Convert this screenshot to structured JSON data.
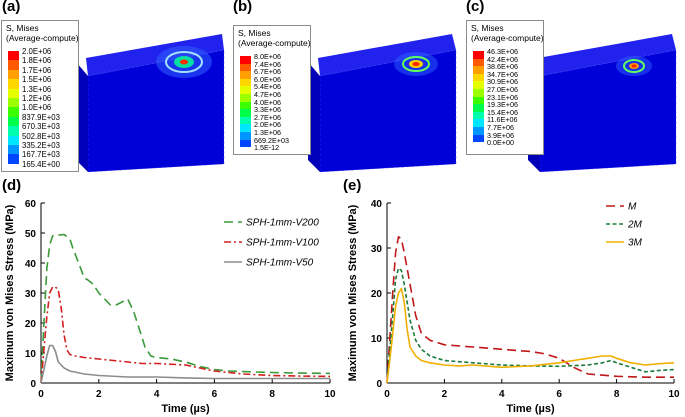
{
  "panels": {
    "a": {
      "label": "(a)",
      "legend_title_1": "S, Mises",
      "legend_title_2": "(Average-compute)",
      "levels": [
        "2.0E+06",
        "1.8E+06",
        "1.7E+06",
        "1.5E+06",
        "1.3E+06",
        "1.2E+06",
        "1.0E+06",
        "837.9E+03",
        "670.3E+03",
        "502.8E+03",
        "335.2E+03",
        "167.7E+03",
        "165.4E+00"
      ]
    },
    "b": {
      "label": "(b)",
      "legend_title_1": "S, Mises",
      "legend_title_2": "(Average-compute)",
      "levels": [
        "8.0E+06",
        "7.4E+06",
        "6.7E+06",
        "6.0E+06",
        "5.4E+06",
        "4.7E+06",
        "4.0E+06",
        "3.3E+06",
        "2.7E+06",
        "2.0E+06",
        "1.3E+06",
        "669.2E+03",
        "1.5E-12"
      ]
    },
    "c": {
      "label": "(c)",
      "legend_title_1": "S, Mises",
      "legend_title_2": "(Average-compute)",
      "levels": [
        "46.3E+06",
        "42.4E+06",
        "38.6E+06",
        "34.7E+06",
        "30.9E+06",
        "27.0E+06",
        "23.1E+06",
        "19.3E+06",
        "15.4E+06",
        "11.6E+06",
        "7.7E+06",
        "3.9E+06",
        "0.0E+00"
      ]
    },
    "d": {
      "label": "(d)"
    },
    "e": {
      "label": "(e)"
    }
  },
  "contour_colors": [
    "#ff0000",
    "#ff5a00",
    "#ffa000",
    "#ffd700",
    "#e6ff00",
    "#9bff00",
    "#3cff00",
    "#00ff4a",
    "#00ffad",
    "#00e6ff",
    "#0096ff",
    "#0046ff",
    "#0000f5"
  ],
  "block_color": "#1a1ae6",
  "chart_data": [
    {
      "type": "line",
      "xlabel": "Time (µs)",
      "ylabel": "Maximum von Mises Stress (MPa)",
      "xlim": [
        0,
        10
      ],
      "ylim": [
        0,
        60
      ],
      "xticks": [
        "0",
        "2",
        "4",
        "6",
        "8",
        "10"
      ],
      "yticks": [
        "0",
        "10",
        "20",
        "30",
        "40",
        "50",
        "60"
      ],
      "grid": false,
      "legend_position": "top-right",
      "series": [
        {
          "name": "SPH-1mm-V200",
          "color": "#3a9a3a",
          "style": "long-dash",
          "x": [
            0,
            0.1,
            0.2,
            0.3,
            0.4,
            0.5,
            0.6,
            0.8,
            1.0,
            1.1,
            1.3,
            1.5,
            1.6,
            1.8,
            2.0,
            2.2,
            2.4,
            2.6,
            2.8,
            3.0,
            3.2,
            3.4,
            3.6,
            3.8,
            4.0,
            4.5,
            5.0,
            5.5,
            6.0,
            6.5,
            7.0,
            8.0,
            9.0,
            10.0
          ],
          "y": [
            0,
            20,
            38,
            46,
            49,
            49.5,
            49.3,
            49.5,
            48,
            45,
            40,
            35,
            34.5,
            33,
            30,
            28,
            26,
            26,
            27,
            28,
            24,
            18,
            12,
            9,
            8.5,
            8,
            7,
            5.5,
            4.5,
            4,
            3.8,
            3.5,
            3.3,
            3.2
          ]
        },
        {
          "name": "SPH-1mm-V100",
          "color": "#d22020",
          "style": "dash-dot",
          "x": [
            0,
            0.2,
            0.3,
            0.4,
            0.5,
            0.6,
            0.7,
            0.8,
            0.9,
            1.0,
            1.2,
            1.5,
            2.0,
            2.5,
            3.0,
            3.5,
            4.0,
            5.0,
            6.0,
            7.0,
            8.0,
            9.0,
            10.0
          ],
          "y": [
            0,
            22,
            30,
            32,
            32,
            31,
            25,
            16,
            11,
            9.5,
            9,
            8.5,
            8,
            7.5,
            7,
            6.5,
            6.5,
            6,
            4,
            3,
            2.5,
            2.3,
            2.2
          ]
        },
        {
          "name": "SPH-1mm-V50",
          "color": "#8c8c8c",
          "style": "solid",
          "x": [
            0,
            0.2,
            0.3,
            0.4,
            0.5,
            0.6,
            0.8,
            1.0,
            1.5,
            2.0,
            3.0,
            4.0,
            5.0,
            6.0,
            8.0,
            10.0
          ],
          "y": [
            0,
            9,
            12.5,
            12.5,
            10.5,
            7,
            5,
            4,
            3,
            2.5,
            2,
            2,
            1.7,
            1.5,
            1.5,
            1.5
          ]
        }
      ]
    },
    {
      "type": "line",
      "xlabel": "Time (µs)",
      "ylabel": "Maximum von Mises Stress (MPa)",
      "xlim": [
        0,
        10
      ],
      "ylim": [
        0,
        40
      ],
      "xticks": [
        "0",
        "2",
        "4",
        "6",
        "8",
        "10"
      ],
      "yticks": [
        "0",
        "10",
        "20",
        "30",
        "40"
      ],
      "grid": false,
      "legend_position": "top-right",
      "series": [
        {
          "name": "M",
          "color": "#c01818",
          "style": "long-dash",
          "x": [
            0,
            0.2,
            0.3,
            0.4,
            0.5,
            0.6,
            0.8,
            1.0,
            1.2,
            1.5,
            2.0,
            3.0,
            4.0,
            5.0,
            5.5,
            6.0,
            6.5,
            7.0,
            8.0,
            9.0,
            10.0
          ],
          "y": [
            0,
            20,
            29,
            32.5,
            32,
            29,
            22,
            15,
            11,
            9.5,
            8.5,
            8,
            7.5,
            7,
            6.5,
            5.5,
            3.5,
            2,
            1.5,
            1.3,
            1.3
          ]
        },
        {
          "name": "2M",
          "color": "#1a7a3a",
          "style": "short-dash",
          "x": [
            0,
            0.2,
            0.3,
            0.4,
            0.5,
            0.6,
            0.8,
            1.0,
            1.2,
            1.5,
            2.0,
            3.0,
            4.0,
            5.0,
            6.0,
            7.0,
            7.5,
            7.8,
            8.0,
            8.5,
            9.0,
            9.5,
            10.0
          ],
          "y": [
            0,
            15,
            23,
            25.5,
            25,
            22,
            14,
            9.5,
            7.5,
            6,
            5,
            4.5,
            4,
            3.8,
            3.7,
            4,
            4.5,
            5,
            4.5,
            3.5,
            2.5,
            2.8,
            3
          ]
        },
        {
          "name": "3M",
          "color": "#f0b000",
          "style": "solid",
          "x": [
            0,
            0.15,
            0.3,
            0.4,
            0.5,
            0.6,
            0.7,
            0.8,
            1.0,
            1.2,
            1.5,
            2.0,
            2.5,
            3.0,
            4.0,
            5.0,
            6.0,
            6.5,
            7.0,
            7.5,
            7.8,
            8.0,
            8.5,
            9.0,
            9.5,
            10.0
          ],
          "y": [
            0,
            8,
            17,
            20,
            21,
            18,
            12,
            8,
            6,
            5,
            4.5,
            4,
            3.8,
            4,
            3.5,
            3.8,
            4.5,
            5,
            5.5,
            6,
            6,
            5.5,
            4.5,
            4,
            4.3,
            4.5
          ]
        }
      ]
    }
  ]
}
